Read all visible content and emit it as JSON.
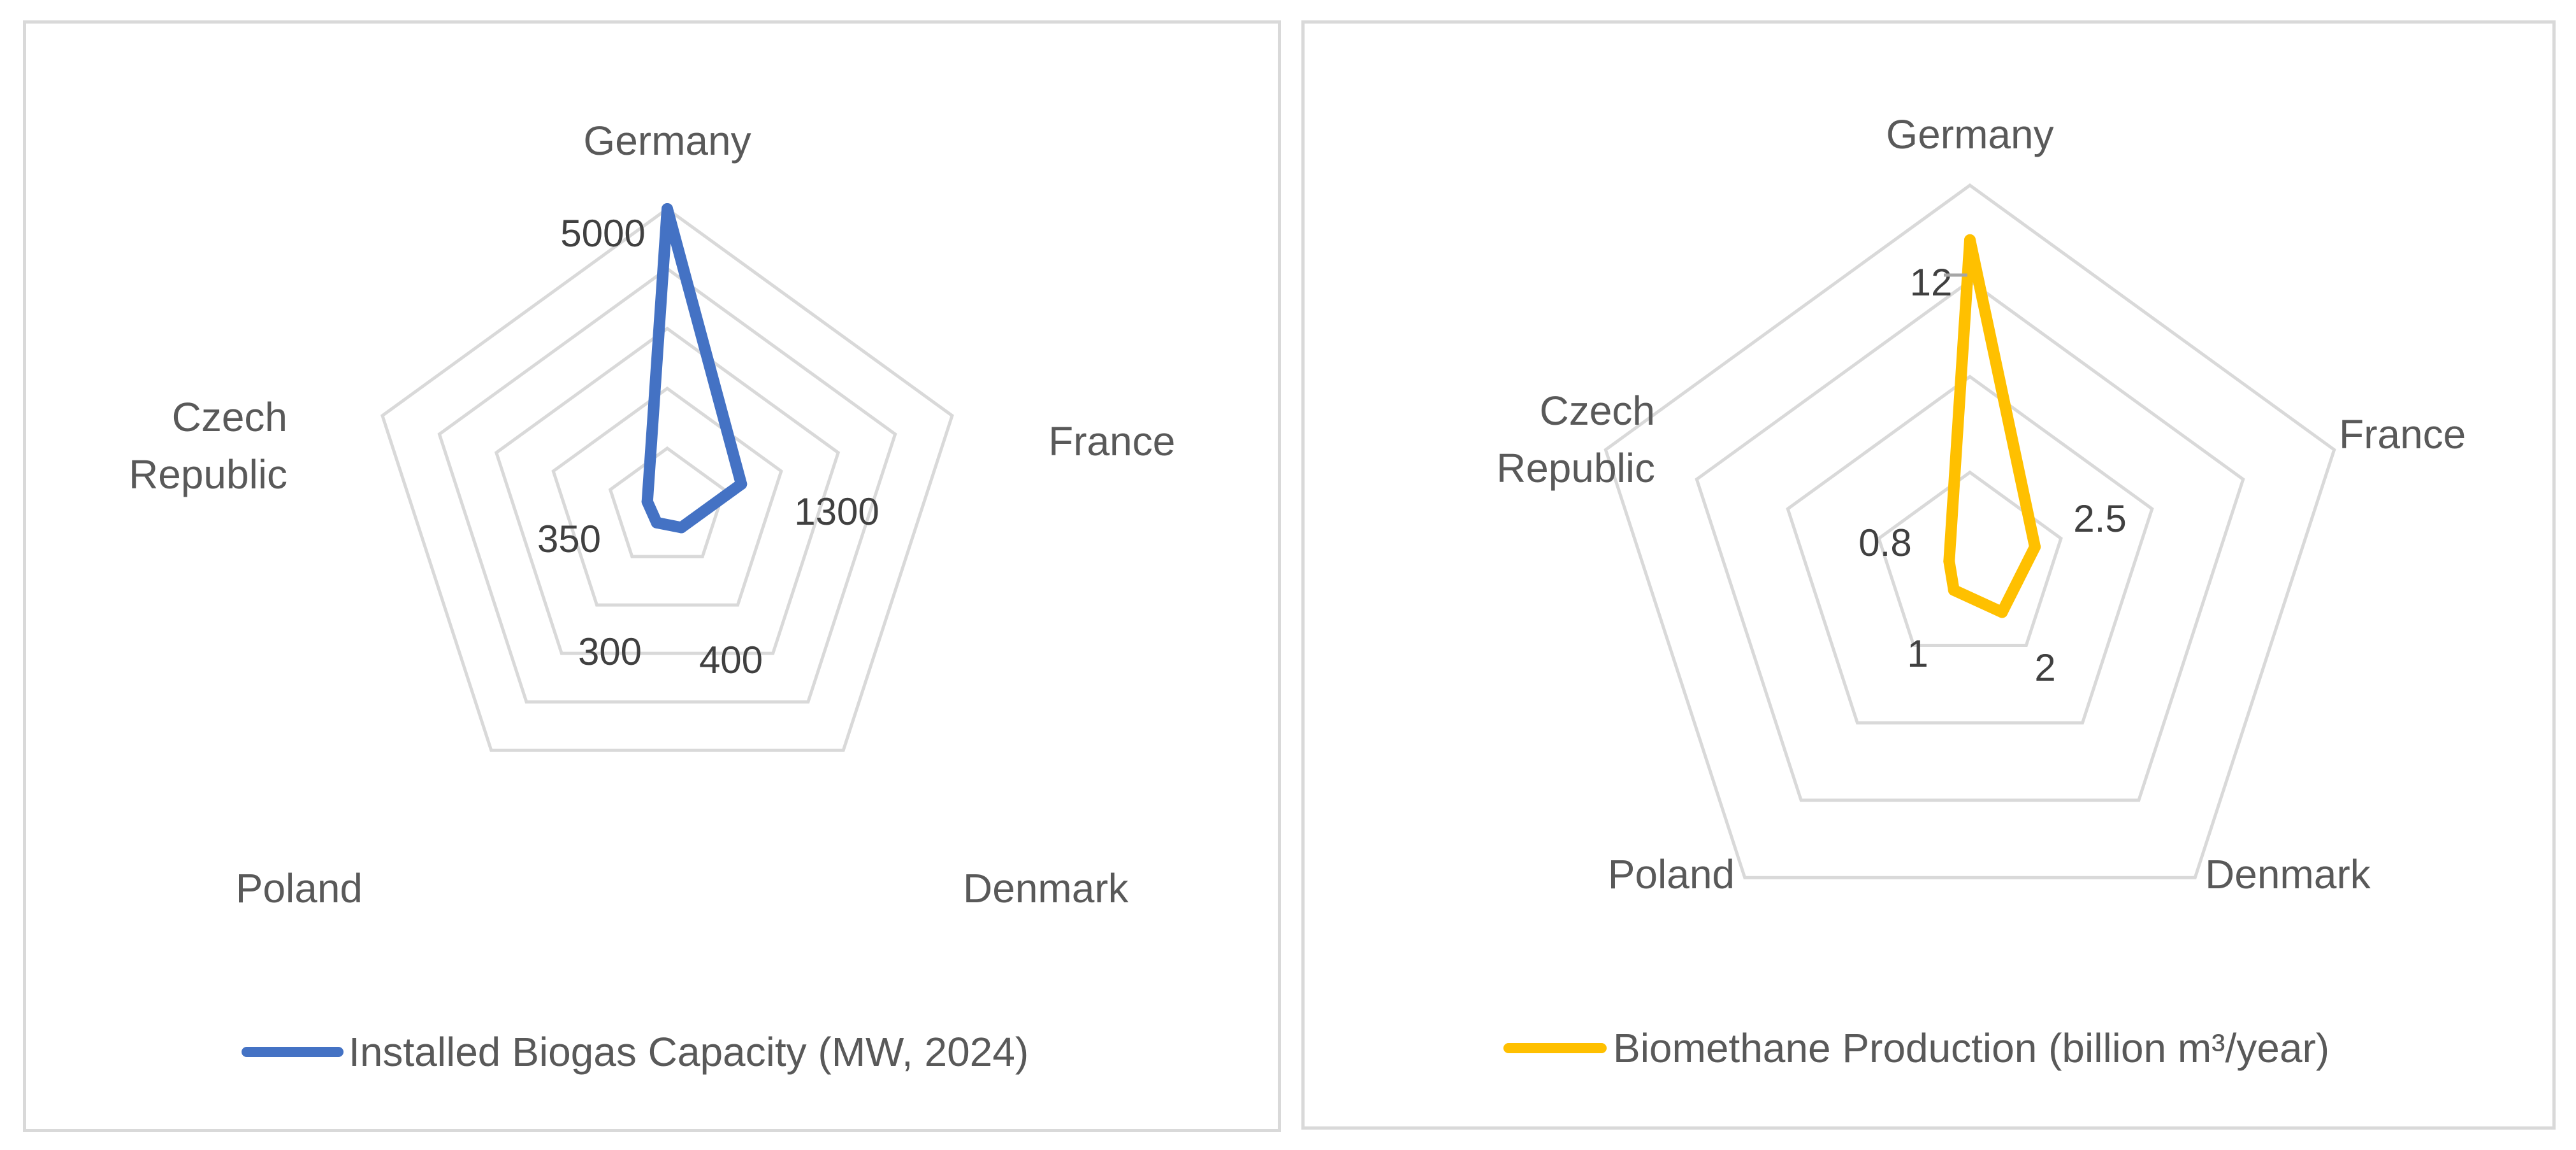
{
  "chart_data": [
    {
      "type": "radar",
      "title": "",
      "categories": [
        "Germany",
        "France",
        "Denmark",
        "Poland",
        "Czech Republic"
      ],
      "series": [
        {
          "name": "Installed Biogas Capacity (MW, 2024)",
          "values": [
            5000,
            1300,
            400,
            300,
            350
          ],
          "color": "#4472C4"
        }
      ],
      "data_labels": [
        "5000",
        "1300",
        "400",
        "300",
        "350"
      ],
      "rlim": [
        0,
        5000
      ],
      "ring_values": [
        1000,
        2000,
        3000,
        4000,
        5000
      ],
      "legend": "bottom"
    },
    {
      "type": "radar",
      "title": "",
      "categories": [
        "Germany",
        "France",
        "Denmark",
        "Poland",
        "Czech Republic"
      ],
      "series": [
        {
          "name": "Biomethane Production (billion m³/year)",
          "values": [
            12,
            2.5,
            2,
            1,
            0.8
          ],
          "color": "#FFC000"
        }
      ],
      "data_labels": [
        "12",
        "2.5",
        "2",
        "1",
        "0.8"
      ],
      "rlim": [
        0,
        14
      ],
      "ring_values": [
        3.5,
        7,
        10.5,
        14
      ],
      "legend": "bottom"
    }
  ],
  "colors": {
    "grid": "#d9d9d9",
    "text": "#595959",
    "border": "#d9d9d9"
  }
}
